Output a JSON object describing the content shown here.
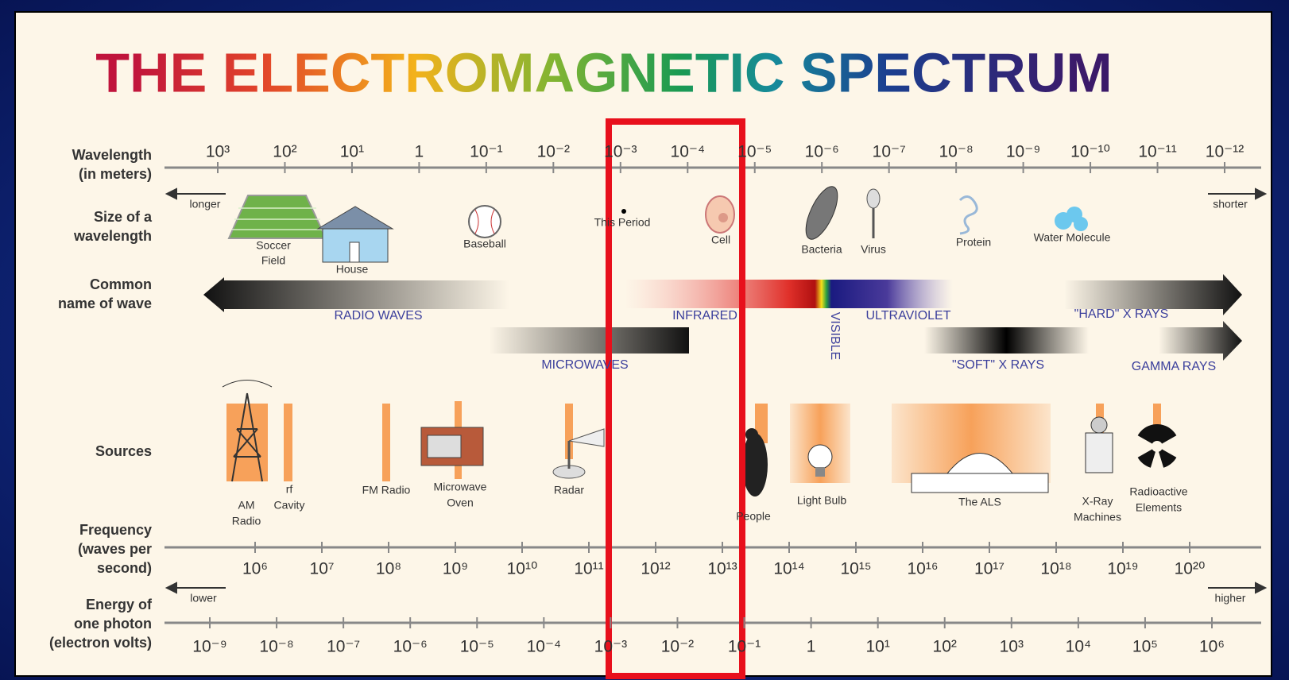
{
  "title": "THE ELECTROMAGNETIC SPECTRUM",
  "wavelength": {
    "label": [
      "Wavelength",
      "(in meters)"
    ],
    "ticks": [
      "10³",
      "10²",
      "10¹",
      "1",
      "10⁻¹",
      "10⁻²",
      "10⁻³",
      "10⁻⁴",
      "10⁻⁵",
      "10⁻⁶",
      "10⁻⁷",
      "10⁻⁸",
      "10⁻⁹",
      "10⁻¹⁰",
      "10⁻¹¹",
      "10⁻¹²"
    ],
    "left": "longer",
    "right": "shorter"
  },
  "size": {
    "label": [
      "Size of a",
      "wavelength"
    ],
    "objects": [
      [
        "Soccer",
        "Field"
      ],
      [
        "House"
      ],
      [
        "Baseball"
      ],
      [
        "This Period"
      ],
      [
        "Cell"
      ],
      [
        "Bacteria"
      ],
      [
        "Virus"
      ],
      [
        "Protein"
      ],
      [
        "Water Molecule"
      ]
    ]
  },
  "waves": {
    "label": [
      "Common",
      "name of wave"
    ],
    "names": [
      "RADIO WAVES",
      "INFRARED",
      "VISIBLE",
      "ULTRAVIOLET",
      "\"HARD\" X RAYS",
      "MICROWAVES",
      "\"SOFT\" X RAYS",
      "GAMMA RAYS"
    ]
  },
  "sources": {
    "label": [
      "Sources"
    ],
    "items": [
      [
        "AM",
        "Radio"
      ],
      [
        "rf",
        "Cavity"
      ],
      [
        "FM Radio"
      ],
      [
        "Microwave",
        "Oven"
      ],
      [
        "Radar"
      ],
      [
        "People"
      ],
      [
        "Light Bulb"
      ],
      [
        "The ALS"
      ],
      [
        "X-Ray",
        "Machines"
      ],
      [
        "Radioactive",
        "Elements"
      ]
    ]
  },
  "frequency": {
    "label": [
      "Frequency",
      "(waves per",
      "second)"
    ],
    "ticks": [
      "10⁶",
      "10⁷",
      "10⁸",
      "10⁹",
      "10¹⁰",
      "10¹¹",
      "10¹²",
      "10¹³",
      "10¹⁴",
      "10¹⁵",
      "10¹⁶",
      "10¹⁷",
      "10¹⁸",
      "10¹⁹",
      "10²⁰"
    ]
  },
  "energy": {
    "label": [
      "Energy of",
      "one photon",
      "(electron volts)"
    ],
    "ticks": [
      "10⁻⁹",
      "10⁻⁸",
      "10⁻⁷",
      "10⁻⁶",
      "10⁻⁵",
      "10⁻⁴",
      "10⁻³",
      "10⁻²",
      "10⁻¹",
      "1",
      "10¹",
      "10²",
      "10³",
      "10⁴",
      "10⁵",
      "10⁶"
    ],
    "left": "lower",
    "right": "higher"
  }
}
